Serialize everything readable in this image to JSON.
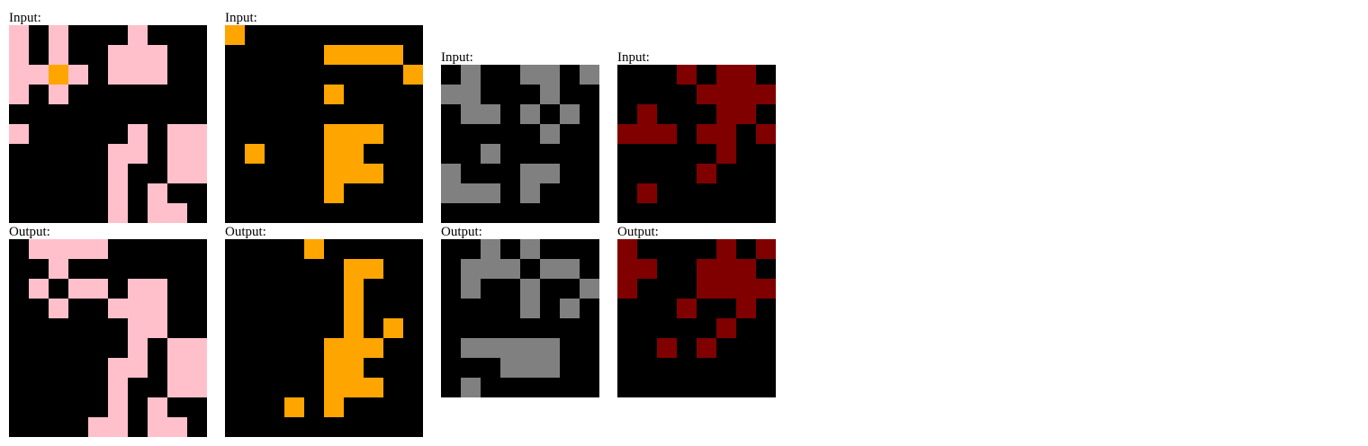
{
  "palette": {
    "0": "#000000",
    "p": "#ffc0cb",
    "o": "#ffa500",
    "g": "#808080",
    "r": "#800000"
  },
  "examples": [
    {
      "input_label": "Input:",
      "output_label": "Output:",
      "input": [
        "p0p000p000",
        "p0p00ppp00",
        "ppop0ppp00",
        "p0p0000000",
        "0000000000",
        "p00000p0pp",
        "00000pp0pp",
        "00000p00pp",
        "00000p0p00",
        "00000p0pp0"
      ],
      "output": [
        "0pppp00000",
        "00p0000000",
        "0p0pp0pp00",
        "00p00ppp00",
        "000000pp00",
        "000000p0pp",
        "00000pp0pp",
        "00000p00pp",
        "00000p0p00",
        "0000pp0pp0"
      ]
    },
    {
      "input_label": "Input:",
      "output_label": "Output:",
      "input": [
        "o000000000",
        "00000oooo0",
        "000000000o",
        "00000o0000",
        "0000000000",
        "00000ooo00",
        "0o000oo000",
        "00000ooo00",
        "00000o0000",
        "0000000000"
      ],
      "output": [
        "0000o00000",
        "000000oo00",
        "000000o000",
        "000000o000",
        "000000o0o0",
        "00000ooo00",
        "00000oo000",
        "00000ooo00",
        "000o0o0000",
        "0000000000"
      ]
    },
    {
      "input_label": "Input:",
      "output_label": "Output:",
      "input": [
        "0g00gg0g",
        "gg000g00",
        "0gg0g0g0",
        "00000g00",
        "00g00000",
        "g000gg00",
        "ggg0g000",
        "00000000"
      ],
      "output": [
        "00g0g000",
        "0ggg0gg0",
        "0g00g00g",
        "0000g0g0",
        "00000000",
        "0ggggg00",
        "000ggg00",
        "0g000000"
      ]
    },
    {
      "input_label": "Input:",
      "output_label": "Output:",
      "input": [
        "000r0rr0",
        "0000rrrr",
        "0r000rr0",
        "rrr0rr0r",
        "00000r00",
        "0000r000",
        "0r000000",
        "00000000"
      ],
      "output": [
        "r0000r0r",
        "rr00rrr0",
        "r000rrrr",
        "000r00r0",
        "00000r00",
        "00r0r000",
        "00000000",
        "00000000"
      ]
    }
  ]
}
